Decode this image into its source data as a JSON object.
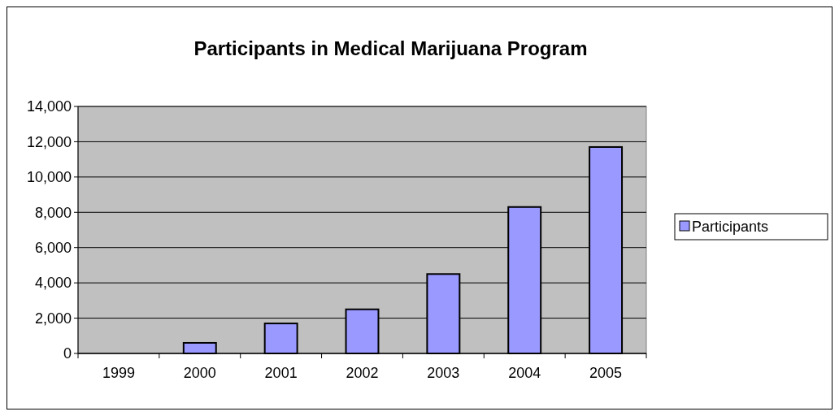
{
  "chart_data": {
    "type": "bar",
    "title": "Participants in Medical Marijuana Program",
    "categories": [
      "1999",
      "2000",
      "2001",
      "2002",
      "2003",
      "2004",
      "2005"
    ],
    "series": [
      {
        "name": "Participants",
        "color": "#9999ff",
        "values": [
          0,
          600,
          1700,
          2500,
          4500,
          8300,
          11700
        ]
      }
    ],
    "ylim": [
      0,
      14000
    ],
    "yticks": [
      {
        "value": 0,
        "label": "0"
      },
      {
        "value": 2000,
        "label": "2,000"
      },
      {
        "value": 4000,
        "label": "4,000"
      },
      {
        "value": 6000,
        "label": "6,000"
      },
      {
        "value": 8000,
        "label": "8,000"
      },
      {
        "value": 10000,
        "label": "10,000"
      },
      {
        "value": 12000,
        "label": "12,000"
      },
      {
        "value": 14000,
        "label": "14,000"
      }
    ],
    "grid": "y",
    "legend": "right"
  }
}
